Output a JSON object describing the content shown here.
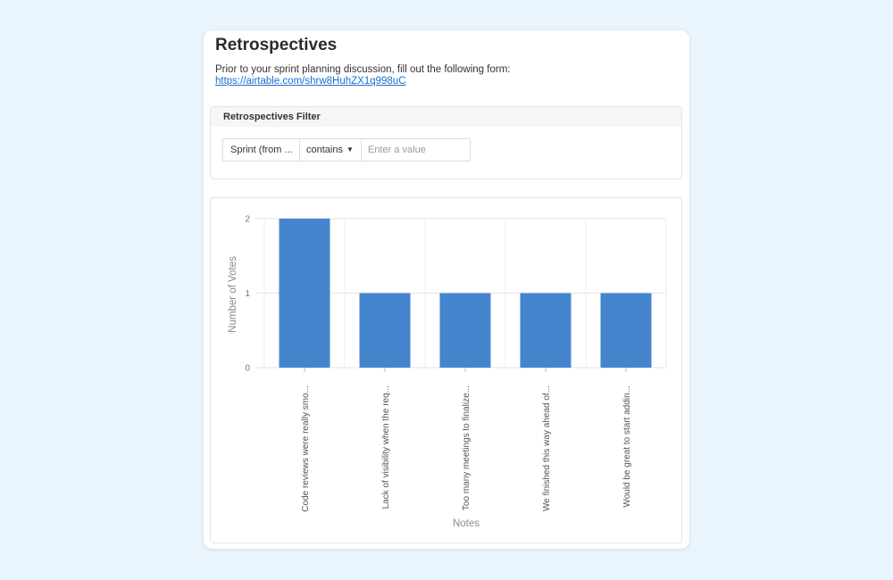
{
  "page": {
    "title": "Retrospectives",
    "description": "Prior to your sprint planning discussion, fill out the following form:",
    "link": "https://airtable.com/shrw8HuhZX1q998uC"
  },
  "filter": {
    "title": "Retrospectives Filter",
    "field": "Sprint (from ...",
    "operator": "contains",
    "placeholder": "Enter a value"
  },
  "chart_data": {
    "type": "bar",
    "categories": [
      "Code reviews were really smo...",
      "Lack of visibility when the req...",
      "Too many meetings to finalize...",
      "We finished this way ahead of...",
      "Would be great to start addin..."
    ],
    "values": [
      2,
      1,
      1,
      1,
      1
    ],
    "xlabel": "Notes",
    "ylabel": "Number of Votes",
    "ylim": [
      0,
      2
    ],
    "yticks": [
      0,
      1,
      2
    ],
    "grid": true,
    "bar_color": "#4585cd"
  }
}
